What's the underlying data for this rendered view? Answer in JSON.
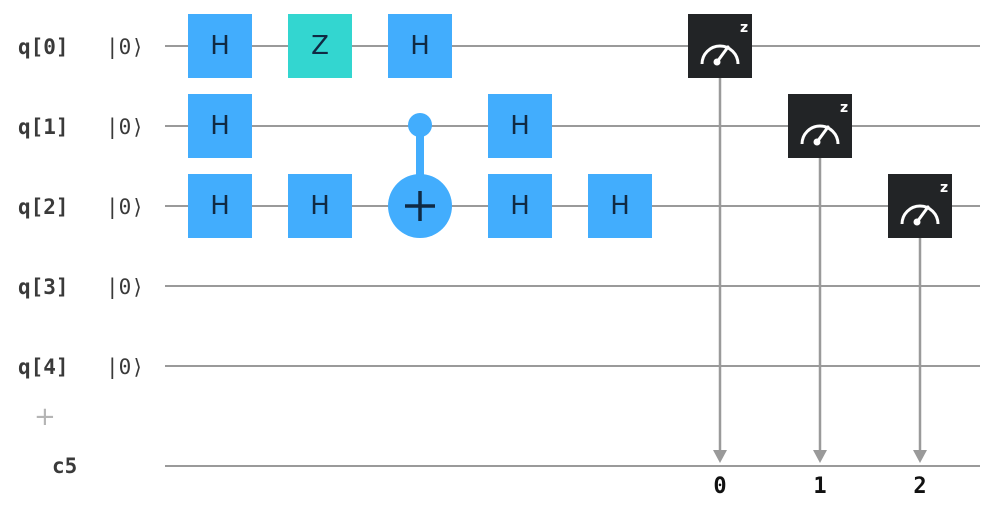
{
  "qubits": [
    {
      "label": "q[0]",
      "init": "|0⟩"
    },
    {
      "label": "q[1]",
      "init": "|0⟩"
    },
    {
      "label": "q[2]",
      "init": "|0⟩"
    },
    {
      "label": "q[3]",
      "init": "|0⟩"
    },
    {
      "label": "q[4]",
      "init": "|0⟩"
    }
  ],
  "classical_register": {
    "label": "c5"
  },
  "add_register_symbol": "+",
  "gates": [
    {
      "type": "H",
      "qubit": 0,
      "column": 0
    },
    {
      "type": "Z",
      "qubit": 0,
      "column": 1
    },
    {
      "type": "H",
      "qubit": 0,
      "column": 2
    },
    {
      "type": "H",
      "qubit": 1,
      "column": 0
    },
    {
      "type": "H",
      "qubit": 1,
      "column": 3
    },
    {
      "type": "H",
      "qubit": 2,
      "column": 0
    },
    {
      "type": "H",
      "qubit": 2,
      "column": 1
    },
    {
      "type": "H",
      "qubit": 2,
      "column": 3
    },
    {
      "type": "H",
      "qubit": 2,
      "column": 4
    }
  ],
  "cnot": {
    "control": 1,
    "target": 2,
    "column": 2
  },
  "measurements": [
    {
      "qubit": 0,
      "bit": "0",
      "basis": "z"
    },
    {
      "qubit": 1,
      "bit": "1",
      "basis": "z"
    },
    {
      "qubit": 2,
      "bit": "2",
      "basis": "z"
    }
  ],
  "colors": {
    "h_gate": "#42adfd",
    "z_gate": "#33d6d0",
    "cnot": "#42adfd",
    "measure_bg": "#222426",
    "wire": "#9a9a9a"
  }
}
